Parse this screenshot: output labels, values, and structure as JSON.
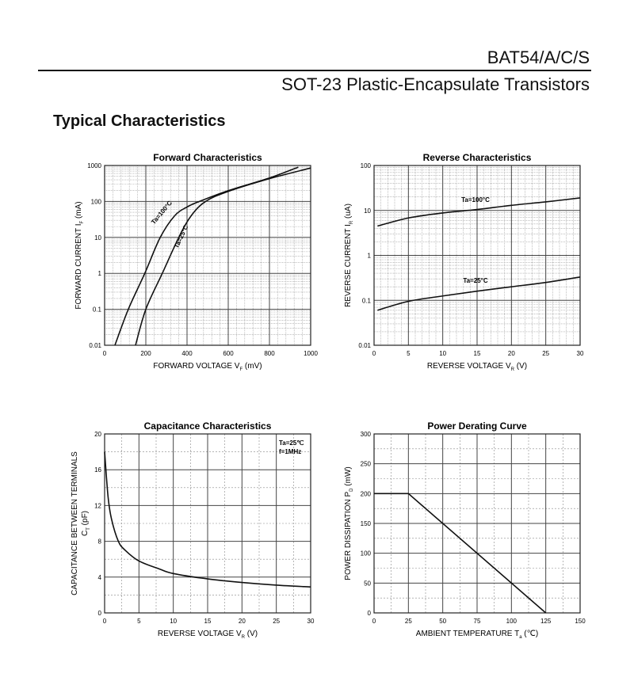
{
  "header": {
    "part": "BAT54/A/C/S",
    "subtitle": "SOT-23 Plastic-Encapsulate Transistors",
    "section": "Typical Characteristics"
  },
  "chart_data": [
    {
      "type": "line",
      "title": "Forward    Characteristics",
      "xlabel": "FORWARD VOLTAGE   V",
      "xsub": "F",
      "xunit": "(mV)",
      "ylabel": "FORWARD CURRENT   I",
      "ysub": "F",
      "yunit": "(mA)",
      "xscale": "linear",
      "yscale": "log",
      "xlim": [
        0,
        1000
      ],
      "ylim": [
        0.01,
        1000
      ],
      "xticks": [
        0,
        200,
        400,
        600,
        800,
        1000
      ],
      "yticks": [
        0.01,
        0.1,
        1,
        10,
        100,
        1000
      ],
      "ytick_labels": [
        "0.01",
        "0.1",
        "1",
        "10",
        "100",
        "1000"
      ],
      "series": [
        {
          "name": "Ta=100°C",
          "x": [
            50,
            115,
            195,
            270,
            340,
            400,
            460,
            600,
            800,
            940
          ],
          "y": [
            0.01,
            0.1,
            1,
            10,
            40,
            70,
            100,
            200,
            450,
            900
          ]
        },
        {
          "name": "Ta=25°C",
          "x": [
            150,
            200,
            280,
            360,
            420,
            490,
            600,
            800,
            1000
          ],
          "y": [
            0.01,
            0.1,
            1,
            10,
            40,
            100,
            190,
            430,
            850
          ]
        }
      ]
    },
    {
      "type": "line",
      "title": "Reverse    Characteristics",
      "xlabel": "REVERSE VOLTAGE   V",
      "xsub": "R",
      "xunit": "(V)",
      "ylabel": "REVERSE CURRENT   I",
      "ysub": "R",
      "yunit": "(uA)",
      "xscale": "linear",
      "yscale": "log",
      "xlim": [
        0,
        30
      ],
      "ylim": [
        0.01,
        100
      ],
      "xticks": [
        0,
        5,
        10,
        15,
        20,
        25,
        30
      ],
      "yticks": [
        0.01,
        0.1,
        1,
        10,
        100
      ],
      "ytick_labels": [
        "0.01",
        "0.1",
        "1",
        "10",
        "100"
      ],
      "series": [
        {
          "name": "Ta=100°C",
          "x": [
            0.5,
            5,
            10,
            15,
            20,
            25,
            30
          ],
          "y": [
            4.5,
            6.8,
            8.8,
            10.5,
            13,
            15.5,
            19
          ]
        },
        {
          "name": "Ta=25°C",
          "x": [
            0.5,
            5,
            10,
            15,
            20,
            25,
            30
          ],
          "y": [
            0.06,
            0.095,
            0.125,
            0.16,
            0.2,
            0.25,
            0.33
          ]
        }
      ]
    },
    {
      "type": "line",
      "title": "Capacitance Characteristics",
      "xlabel": "REVERSE VOLTAGE   V",
      "xsub": "R",
      "xunit": "(V)",
      "ylabel": "CAPACITANCE BETWEEN TERMINALS",
      "ylabel2": "C",
      "ysub": "T",
      "yunit": "(pF)",
      "xscale": "linear",
      "yscale": "linear",
      "xlim": [
        0,
        30
      ],
      "ylim": [
        0,
        20
      ],
      "xticks": [
        0,
        5,
        10,
        15,
        20,
        25,
        30
      ],
      "yticks": [
        0,
        4,
        8,
        12,
        16,
        20
      ],
      "ytick_labels": [
        "0",
        "4",
        "8",
        "12",
        "16",
        "20"
      ],
      "annotations": [
        "Ta=25℃",
        "f=1MHz"
      ],
      "series": [
        {
          "name": "C",
          "x": [
            0,
            0.5,
            1,
            2,
            3,
            5,
            8,
            10,
            15,
            20,
            25,
            30
          ],
          "y": [
            18,
            13,
            10.5,
            8,
            7,
            5.8,
            4.9,
            4.4,
            3.8,
            3.4,
            3.1,
            2.9
          ]
        }
      ]
    },
    {
      "type": "line",
      "title": "Power Derating Curve",
      "xlabel": "AMBIENT TEMPERATURE   T",
      "xsub": "a",
      "xunit": "(℃)",
      "ylabel": "POWER DISSIPATION   P",
      "ysub": "D",
      "yunit": "(mW)",
      "xscale": "linear",
      "yscale": "linear",
      "xlim": [
        0,
        150
      ],
      "ylim": [
        0,
        300
      ],
      "xticks": [
        0,
        25,
        50,
        75,
        100,
        125,
        150
      ],
      "yticks": [
        0,
        50,
        100,
        150,
        200,
        250,
        300
      ],
      "ytick_labels": [
        "0",
        "50",
        "100",
        "150",
        "200",
        "250",
        "300"
      ],
      "series": [
        {
          "name": "PD",
          "x": [
            0,
            25,
            125
          ],
          "y": [
            200,
            200,
            0
          ]
        }
      ]
    }
  ]
}
